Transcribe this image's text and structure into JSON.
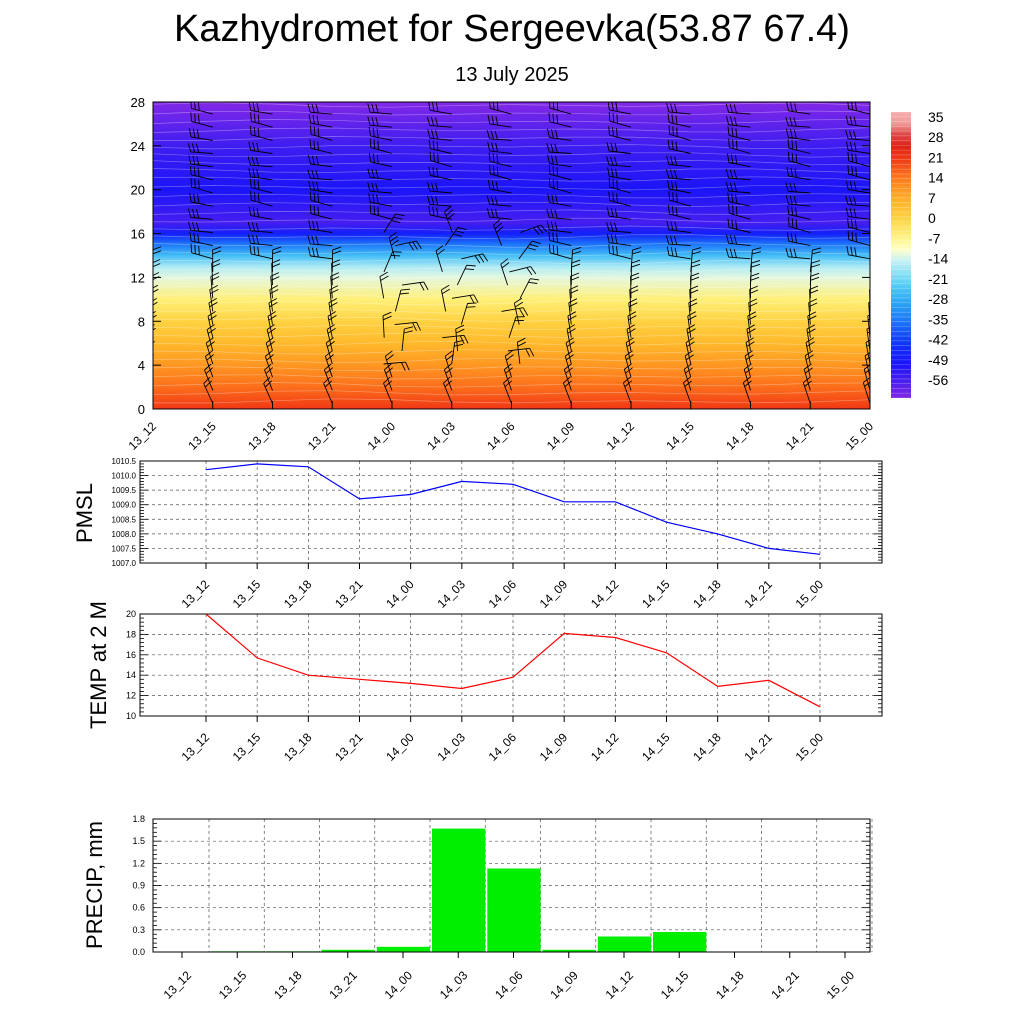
{
  "page": {
    "title": "Kazhydromet for Sergeevka(53.87 67.4)",
    "subtitle": "13 July 2025"
  },
  "colors": {
    "pmsl": "#0000ff",
    "temp": "#ff0000",
    "precip": "#00ee00",
    "grid": "#444444",
    "barb": "#000000"
  },
  "chart_data": [
    {
      "type": "heatmap",
      "x": [
        "13_12",
        "13_15",
        "13_18",
        "13_21",
        "14_00",
        "14_03",
        "14_06",
        "14_09",
        "14_12",
        "14_15",
        "14_18",
        "14_21",
        "15_00"
      ],
      "ylim": [
        0,
        28
      ],
      "yticks": [
        0,
        4,
        8,
        12,
        16,
        20,
        24,
        28
      ],
      "colorbar_labels": [
        "35",
        "28",
        "21",
        "14",
        "7",
        "0",
        "-7",
        "-14",
        "-21",
        "-28",
        "-35",
        "-42",
        "-49",
        "-56"
      ],
      "temperature_profile": [
        {
          "height": 0,
          "temp": 22
        },
        {
          "height": 2,
          "temp": 16
        },
        {
          "height": 4,
          "temp": 11
        },
        {
          "height": 6,
          "temp": 6
        },
        {
          "height": 8,
          "temp": 1
        },
        {
          "height": 10,
          "temp": -5
        },
        {
          "height": 12,
          "temp": -12
        },
        {
          "height": 13,
          "temp": -16
        },
        {
          "height": 14,
          "temp": -25
        },
        {
          "height": 15,
          "temp": -35
        },
        {
          "height": 16,
          "temp": -47
        },
        {
          "height": 17,
          "temp": -56
        },
        {
          "height": 20,
          "temp": -50
        },
        {
          "height": 24,
          "temp": -55
        },
        {
          "height": 28,
          "temp": -62
        }
      ],
      "barbs": "wind barbs at each time step and height level"
    },
    {
      "type": "line",
      "ylabel": "PMSL",
      "x": [
        "13_12",
        "13_15",
        "13_18",
        "13_21",
        "14_00",
        "14_03",
        "14_06",
        "14_09",
        "14_12",
        "14_15",
        "14_18",
        "14_21",
        "15_00"
      ],
      "series": [
        {
          "values": [
            1010.2,
            1010.4,
            1010.3,
            1009.2,
            1009.35,
            1009.8,
            1009.7,
            1009.1,
            1009.1,
            1008.4,
            1008.0,
            1007.5,
            1007.3
          ]
        }
      ],
      "ylim": [
        1007.0,
        1010.5
      ],
      "yticks": [
        "1007.0",
        "1007.5",
        "1008.0",
        "1008.5",
        "1009.0",
        "1009.5",
        "1010.0",
        "1010.5"
      ],
      "grid": true
    },
    {
      "type": "line",
      "ylabel": "TEMP at 2 M",
      "x": [
        "13_12",
        "13_15",
        "13_18",
        "13_21",
        "14_00",
        "14_03",
        "14_06",
        "14_09",
        "14_12",
        "14_15",
        "14_18",
        "14_21",
        "15_00"
      ],
      "series": [
        {
          "values": [
            20.0,
            15.7,
            14.0,
            13.6,
            13.2,
            12.7,
            13.8,
            18.1,
            17.7,
            16.2,
            12.9,
            13.5,
            10.9
          ]
        }
      ],
      "ylim": [
        10,
        20
      ],
      "yticks": [
        "10",
        "12",
        "14",
        "16",
        "18",
        "20"
      ],
      "grid": true
    },
    {
      "type": "bar",
      "ylabel": "PRECIP, mm",
      "categories": [
        "13_12",
        "13_15",
        "13_18",
        "13_21",
        "14_00",
        "14_03",
        "14_06",
        "14_09",
        "14_12",
        "14_15",
        "14_18",
        "14_21",
        "15_00"
      ],
      "values": [
        0.0,
        0.01,
        0.01,
        0.03,
        0.07,
        1.67,
        1.13,
        0.03,
        0.21,
        0.27,
        0.0,
        0.0,
        0.0
      ],
      "ylim": [
        0,
        1.8
      ],
      "yticks": [
        "0.0",
        "0.3",
        "0.6",
        "0.9",
        "1.2",
        "1.5",
        "1.8"
      ],
      "grid": true
    }
  ]
}
